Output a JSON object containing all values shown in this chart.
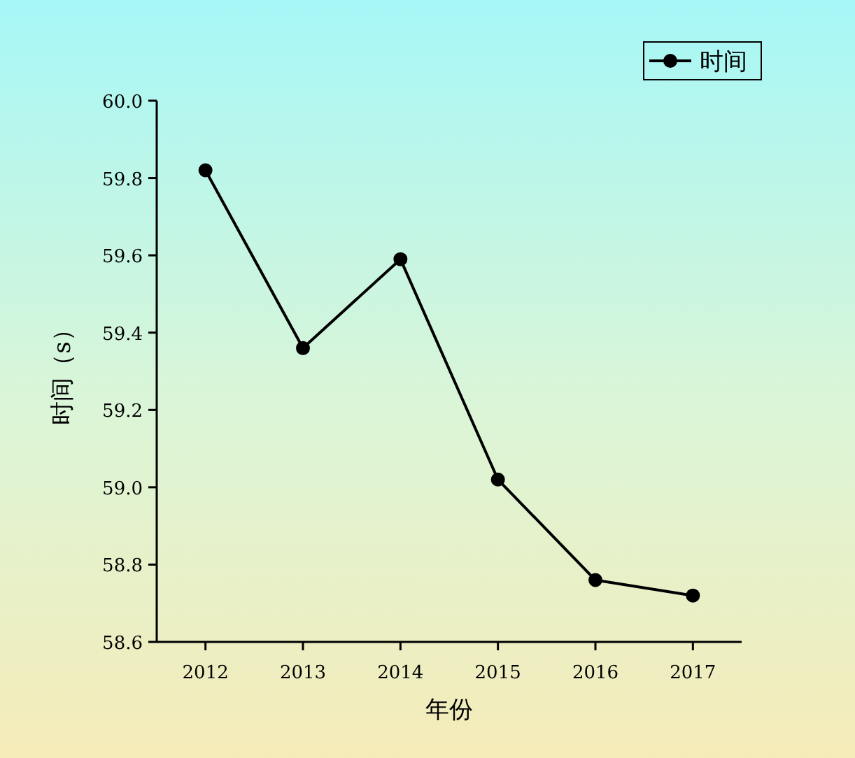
{
  "chart_data": {
    "type": "line",
    "xlabel": "年份",
    "ylabel": "时间（s）",
    "x": [
      2012,
      2013,
      2014,
      2015,
      2016,
      2017
    ],
    "series": [
      {
        "name": "时间",
        "color": "#000000",
        "values": [
          59.82,
          59.36,
          59.59,
          59.02,
          58.76,
          58.72
        ]
      }
    ],
    "xlim": [
      2011.5,
      2017.5
    ],
    "xticks": [
      2012,
      2013,
      2014,
      2015,
      2016,
      2017
    ],
    "ylim": [
      58.6,
      60.0
    ],
    "yticks": [
      58.6,
      58.8,
      {
        "value": 59.0,
        "label": "59.0"
      },
      59.2,
      59.4,
      59.6,
      59.8,
      {
        "value": 60.0,
        "label": "60.0"
      }
    ],
    "legend": "top right",
    "marker": "circle",
    "line_style": "solid",
    "grid": false
  }
}
